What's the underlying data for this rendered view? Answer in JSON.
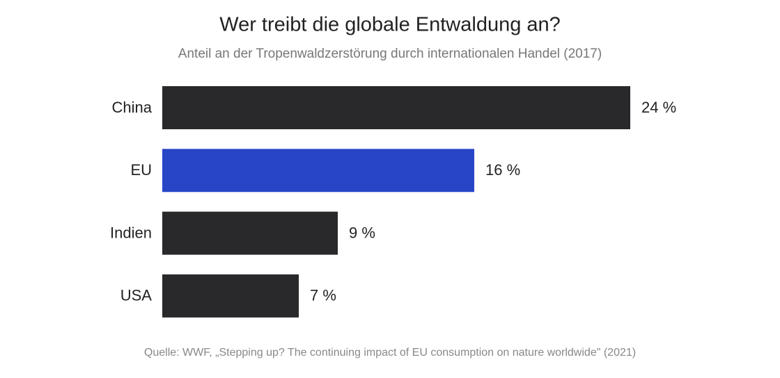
{
  "chart_data": {
    "type": "bar",
    "orientation": "horizontal",
    "title": "Wer treibt die globale Entwaldung an?",
    "subtitle": "Anteil an der Tropenwaldzerstörung durch internationalen Handel (2017)",
    "source": "Quelle: WWF, „Stepping up? The continuing impact of EU consumption on nature worldwide\" (2021)",
    "categories": [
      "China",
      "EU",
      "Indien",
      "USA"
    ],
    "values": [
      24,
      16,
      9,
      7
    ],
    "value_labels": [
      "24 %",
      "16 %",
      "9 %",
      "7 %"
    ],
    "colors": [
      "#29292b",
      "#2845c8",
      "#29292b",
      "#29292b"
    ]
  }
}
